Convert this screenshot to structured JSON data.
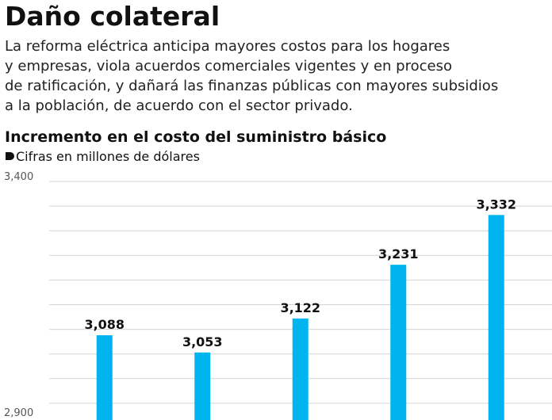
{
  "chart_data": {
    "type": "bar",
    "title": "Daño colateral",
    "description": [
      "La reforma eléctrica anticipa mayores costos para los hogares",
      "y empresas, viola acuerdos comerciales vigentes y en proceso",
      "de ratificación, y dañará las finanzas públicas con mayores subsidios",
      "a la población, de acuerdo con el sector privado."
    ],
    "chart_title": "Incremento en el costo del suministro básico",
    "unit_label": "Cifras en millones de dólares",
    "categories": [
      null,
      null,
      null,
      null,
      null
    ],
    "values": [
      3088,
      3053,
      3122,
      3231,
      3332
    ],
    "value_labels": [
      "3,088",
      "3,053",
      "3,122",
      "3,231",
      "3,332"
    ],
    "color": "#00b4ef",
    "ylim": [
      2900,
      3400
    ],
    "yticks": [
      {
        "value": 3400,
        "label": "3,400"
      },
      {
        "value": 2900,
        "label": "2,900"
      }
    ],
    "gridlines": [
      3350,
      3300,
      3250,
      3200,
      3150,
      3100,
      3050,
      3000,
      2950
    ],
    "grid": true
  }
}
